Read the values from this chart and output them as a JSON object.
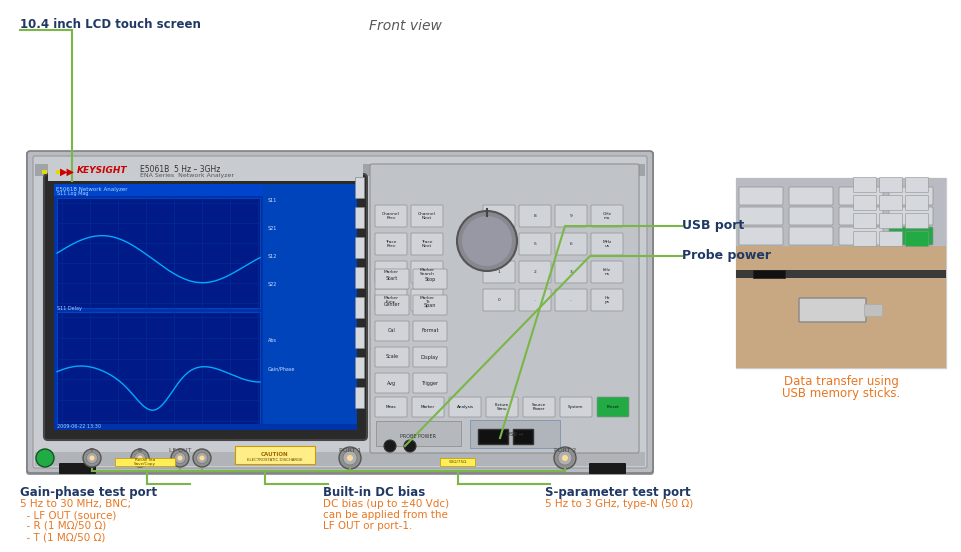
{
  "bg_color": "#ffffff",
  "title_front_view": "Front view",
  "annotation_lcd": "10.4 inch LCD touch screen",
  "annotation_usb": "USB port",
  "annotation_probe": "Probe power",
  "annotation_data_transfer_line1": "Data transfer using",
  "annotation_data_transfer_line2": "USB memory sticks.",
  "label_gain_phase_title": "Gain-phase test port",
  "label_gain_phase_sub": "5 Hz to 30 MHz, BNC;",
  "label_gain_phase_l1": "  - LF OUT (source)",
  "label_gain_phase_l2": "  - R (1 MΩ/50 Ω)",
  "label_gain_phase_l3": "  - T (1 MΩ/50 Ω)",
  "label_dc_bias_title": "Built-in DC bias",
  "label_dc_bias_l1": "DC bias (up to ±40 Vdc)",
  "label_dc_bias_l2": "can be applied from the",
  "label_dc_bias_l3": "LF OUT or port-1.",
  "label_sparam_title": "S-parameter test port",
  "label_sparam_sub": "5 Hz to 3 GHz, type-N (50 Ω)",
  "green_line_color": "#7ab648",
  "title_color": "#595959",
  "orange_text_color": "#e87722",
  "dark_blue_text_color": "#1f3864",
  "chassis_outer": "#b8bcc2",
  "chassis_face": "#c8cbd0",
  "chassis_top": "#a8abaf",
  "screen_bg": "#0033aa",
  "screen_plot_bg": "#001577",
  "screen_bezel": "#3a3a3a",
  "panel_gray": "#c0c3c8",
  "button_face": "#d0d3d8",
  "button_edge": "#909090",
  "knob_color": "#888890",
  "photo_bg": "#d8d0c8"
}
